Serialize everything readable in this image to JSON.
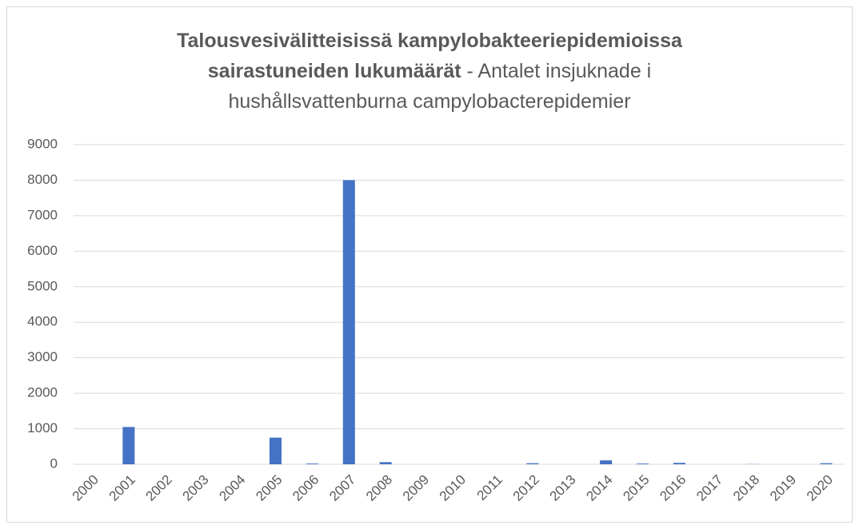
{
  "chart_data": {
    "type": "bar",
    "title": "Talousvesivälitteisissä kampylobakteeriepidemioissa sairastuneiden lukumäärät",
    "subtitle": "- Antalet insjuknade i hushållsvattenburna campylobacterepidemier",
    "categories": [
      "2000",
      "2001",
      "2002",
      "2003",
      "2004",
      "2005",
      "2006",
      "2007",
      "2008",
      "2009",
      "2010",
      "2011",
      "2012",
      "2013",
      "2014",
      "2015",
      "2016",
      "2017",
      "2018",
      "2019",
      "2020"
    ],
    "values": [
      0,
      1050,
      0,
      0,
      0,
      750,
      20,
      8000,
      60,
      0,
      0,
      0,
      30,
      0,
      110,
      20,
      40,
      0,
      5,
      0,
      30
    ],
    "color": "#4472c4",
    "ylim": [
      0,
      9000
    ],
    "yticks": [
      0,
      1000,
      2000,
      3000,
      4000,
      5000,
      6000,
      7000,
      8000,
      9000
    ],
    "grid": true
  }
}
